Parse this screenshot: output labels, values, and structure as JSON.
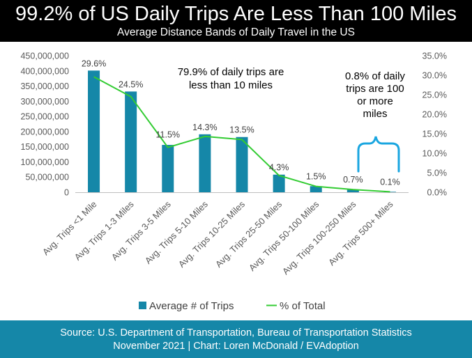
{
  "header": {
    "title": "99.2% of US Daily Trips Are Less Than 100 Miles",
    "subtitle": "Average Distance Bands of Daily Travel in the US"
  },
  "chart_data": {
    "type": "bar",
    "categories": [
      "Avg. Trips <1 Mile",
      "Avg. Trips 1-3 Miles",
      "Avg. Trips 3-5 Miles",
      "Avg. Trips 5-10 Miles",
      "Avg. Trips 10-25 Miles",
      "Avg. Trips 25-50 Miles",
      "Avg. Trips 50-100 Miles",
      "Avg. Trips 100-250 Miles",
      "Avg. Trips 500+ Miles"
    ],
    "series": [
      {
        "name": "Average # of Trips",
        "type": "bar",
        "axis": "left",
        "color": "#1587a8",
        "values": [
          401000000,
          332000000,
          156000000,
          191000000,
          182000000,
          58000000,
          20000000,
          9000000,
          1500000
        ]
      },
      {
        "name": "% of Total",
        "type": "line",
        "axis": "right",
        "color": "#33cc33",
        "values": [
          29.6,
          24.5,
          11.5,
          14.3,
          13.5,
          4.3,
          1.5,
          0.7,
          0.1
        ]
      }
    ],
    "data_labels": [
      "29.6%",
      "24.5%",
      "11.5%",
      "14.3%",
      "13.5%",
      "4.3%",
      "1.5%",
      "0.7%",
      "0.1%"
    ],
    "y_left": {
      "min": 0,
      "max": 450000000,
      "step": 50000000,
      "ticks": [
        "0",
        "50,000,000",
        "100,000,000",
        "150,000,000",
        "200,000,000",
        "250,000,000",
        "300,000,000",
        "350,000,000",
        "400,000,000",
        "450,000,000"
      ]
    },
    "y_right": {
      "min": 0,
      "max": 35,
      "step": 5,
      "ticks": [
        "0.0%",
        "5.0%",
        "10.0%",
        "15.0%",
        "20.0%",
        "25.0%",
        "30.0%",
        "35.0%"
      ]
    },
    "annotations": [
      {
        "lines": [
          "79.9% of daily trips are",
          "less than 10 miles"
        ]
      },
      {
        "lines": [
          "0.8% of daily",
          "trips are 100",
          "or more",
          "miles"
        ]
      }
    ],
    "legend": {
      "position": "bottom",
      "items": [
        "Average # of Trips",
        "% of Total"
      ]
    },
    "grid": false
  },
  "footer": {
    "line1": "Source: U.S. Department of Transportation, Bureau of Transportation Statistics",
    "line2": "November 2021 | Chart: Loren McDonald / EVAdoption"
  },
  "colors": {
    "header_bg": "#000000",
    "footer_bg": "#1587a8",
    "bar": "#1587a8",
    "line": "#33cc33",
    "bracket": "#1aa6e0"
  }
}
